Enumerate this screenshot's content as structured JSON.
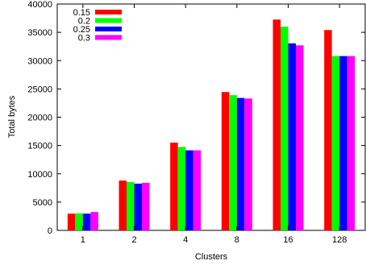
{
  "chart_data": {
    "type": "bar",
    "xlabel": "Clusters",
    "ylabel": "Total bytes",
    "ylim": [
      0,
      40000
    ],
    "yticks": [
      0,
      5000,
      10000,
      15000,
      20000,
      25000,
      30000,
      35000,
      40000
    ],
    "categories": [
      "1",
      "2",
      "4",
      "8",
      "16",
      "128"
    ],
    "legend_position": "top-left",
    "grid": false,
    "series": [
      {
        "name": "0.15",
        "color": "#ff0000",
        "values": [
          2950,
          8800,
          15500,
          24450,
          37250,
          35400
        ]
      },
      {
        "name": "0.2",
        "color": "#00ff00",
        "values": [
          3000,
          8550,
          14750,
          23900,
          36000,
          30800
        ]
      },
      {
        "name": "0.25",
        "color": "#0000ff",
        "values": [
          2950,
          8250,
          14150,
          23400,
          33050,
          30800
        ]
      },
      {
        "name": "0.3",
        "color": "#ff00ff",
        "values": [
          3250,
          8400,
          14150,
          23300,
          32700,
          30800
        ]
      }
    ]
  }
}
